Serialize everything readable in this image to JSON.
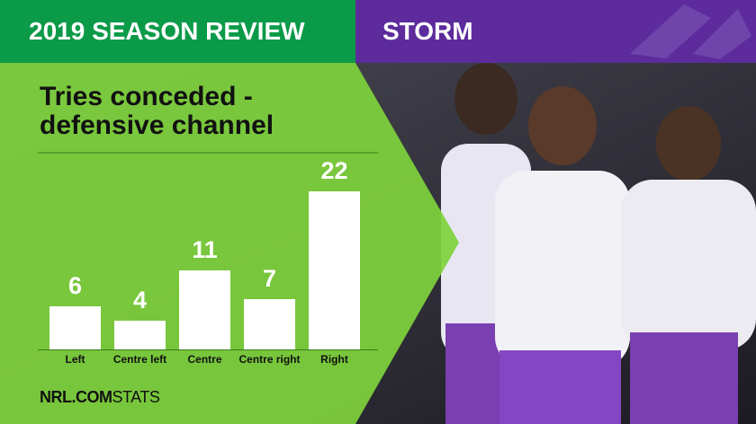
{
  "header": {
    "left": "2019 SEASON REVIEW",
    "right": "STORM"
  },
  "chart_data": {
    "type": "bar",
    "title": "Tries conceded - defensive channel",
    "categories": [
      "Left",
      "Centre left",
      "Centre",
      "Centre right",
      "Right"
    ],
    "values": [
      6,
      4,
      11,
      7,
      22
    ],
    "color": "#ffffff",
    "ylim": [
      0,
      22
    ],
    "grid": false
  },
  "footer": {
    "brand": "NRL.COM",
    "suffix": "STATS"
  }
}
